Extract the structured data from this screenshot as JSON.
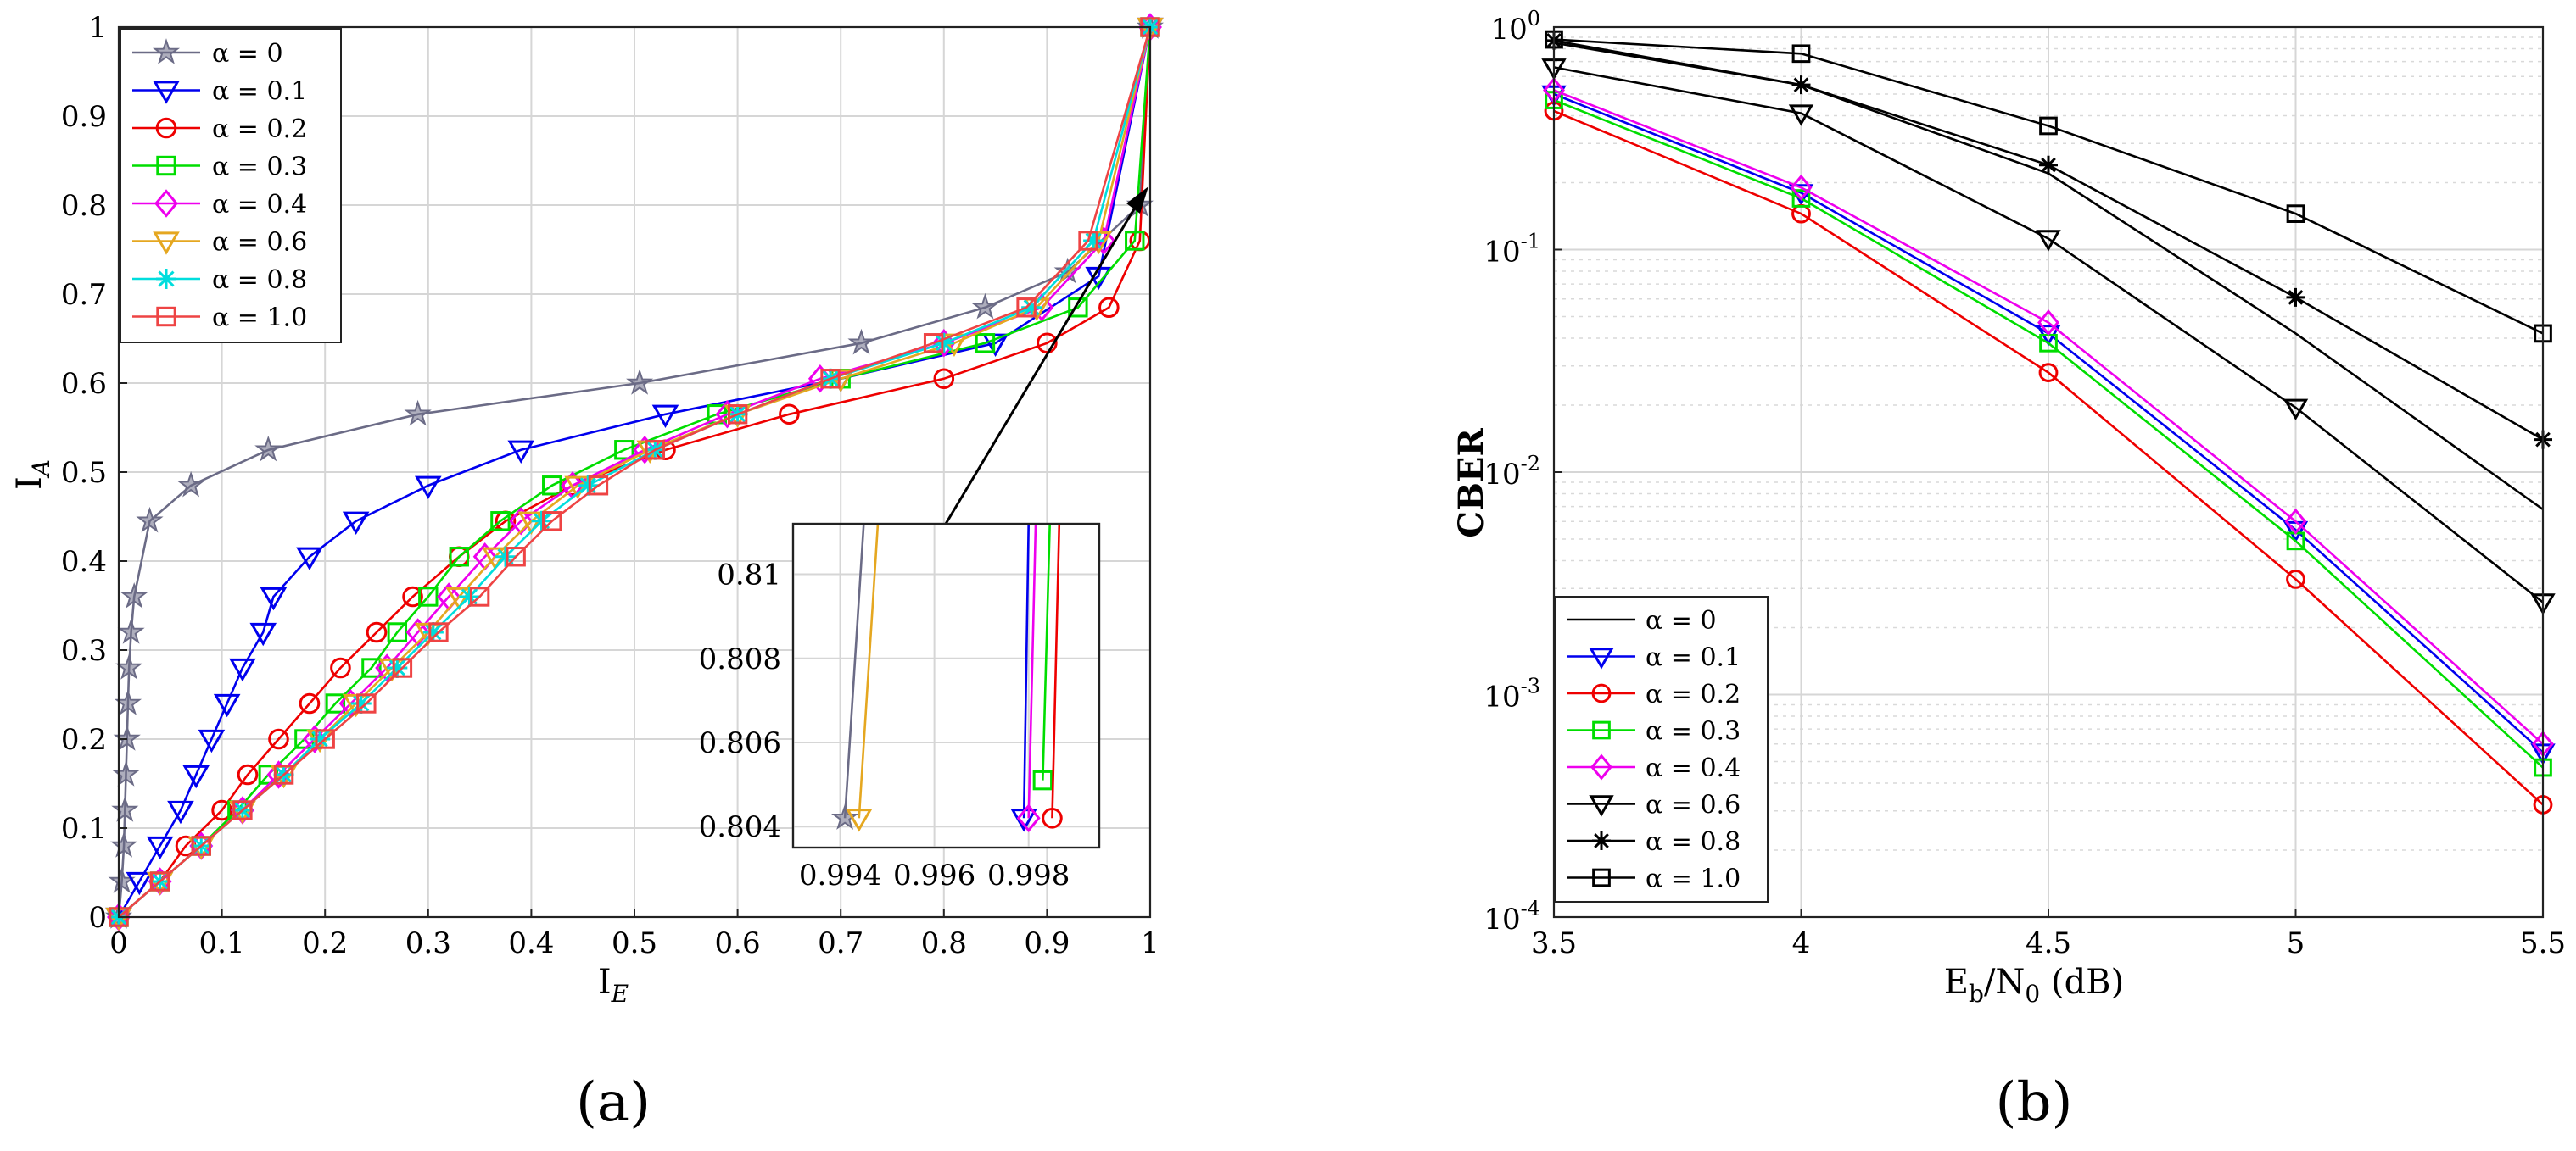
{
  "colors": {
    "a0": "#6b6b86",
    "a01": "#0000ee",
    "a02": "#ee0000",
    "a03": "#00dd00",
    "a04": "#ee00ee",
    "a06": "#e5a720",
    "a08": "#00dddd",
    "a10": "#ee4444",
    "black": "#000000"
  },
  "chart_data": [
    {
      "id": "a",
      "type": "line",
      "panel_label": "(a)",
      "xlabel": "I",
      "xlabel_sub": "E",
      "ylabel": "I",
      "ylabel_sub": "A",
      "xlim": [
        0,
        1
      ],
      "ylim": [
        0,
        1
      ],
      "xticks": [
        "0",
        "0.1",
        "0.2",
        "0.3",
        "0.4",
        "0.5",
        "0.6",
        "0.7",
        "0.8",
        "0.9",
        "1"
      ],
      "yticks": [
        "0",
        "0.1",
        "0.2",
        "0.3",
        "0.4",
        "0.5",
        "0.6",
        "0.7",
        "0.8",
        "0.9",
        "1"
      ],
      "legend_position": "top-left",
      "series": [
        {
          "name": "α = 0",
          "color_key": "a0",
          "marker": "star",
          "x": [
            0,
            0.003,
            0.005,
            0.006,
            0.007,
            0.008,
            0.009,
            0.01,
            0.012,
            0.015,
            0.03,
            0.07,
            0.145,
            0.29,
            0.505,
            0.72,
            0.84,
            0.92,
            0.99,
            1.0
          ],
          "y": [
            0,
            0.04,
            0.08,
            0.12,
            0.16,
            0.2,
            0.24,
            0.28,
            0.32,
            0.36,
            0.445,
            0.485,
            0.525,
            0.565,
            0.6,
            0.645,
            0.685,
            0.725,
            0.8,
            1.0
          ]
        },
        {
          "name": "α = 0.1",
          "color_key": "a01",
          "marker": "tri-down",
          "x": [
            0,
            0.02,
            0.04,
            0.06,
            0.075,
            0.09,
            0.105,
            0.12,
            0.14,
            0.15,
            0.185,
            0.23,
            0.3,
            0.39,
            0.53,
            0.7,
            0.85,
            0.95,
            1.0
          ],
          "y": [
            0,
            0.04,
            0.08,
            0.12,
            0.16,
            0.2,
            0.24,
            0.28,
            0.32,
            0.36,
            0.405,
            0.445,
            0.485,
            0.525,
            0.565,
            0.605,
            0.645,
            0.72,
            1.0
          ]
        },
        {
          "name": "α = 0.2",
          "color_key": "a02",
          "marker": "circle",
          "x": [
            0,
            0.04,
            0.065,
            0.1,
            0.125,
            0.155,
            0.185,
            0.215,
            0.25,
            0.285,
            0.33,
            0.375,
            0.44,
            0.53,
            0.65,
            0.8,
            0.9,
            0.96,
            0.99,
            1.0
          ],
          "y": [
            0,
            0.04,
            0.08,
            0.12,
            0.16,
            0.2,
            0.24,
            0.28,
            0.32,
            0.36,
            0.405,
            0.445,
            0.485,
            0.525,
            0.565,
            0.605,
            0.645,
            0.685,
            0.76,
            1.0
          ]
        },
        {
          "name": "α = 0.3",
          "color_key": "a03",
          "marker": "square",
          "x": [
            0,
            0.04,
            0.08,
            0.115,
            0.145,
            0.18,
            0.21,
            0.245,
            0.27,
            0.3,
            0.33,
            0.37,
            0.42,
            0.49,
            0.58,
            0.7,
            0.84,
            0.93,
            0.985,
            1.0
          ],
          "y": [
            0,
            0.04,
            0.08,
            0.12,
            0.16,
            0.2,
            0.24,
            0.28,
            0.32,
            0.36,
            0.405,
            0.445,
            0.485,
            0.525,
            0.565,
            0.605,
            0.645,
            0.685,
            0.76,
            1.0
          ]
        },
        {
          "name": "α = 0.4",
          "color_key": "a04",
          "marker": "diamond",
          "x": [
            0,
            0.04,
            0.08,
            0.12,
            0.155,
            0.19,
            0.225,
            0.26,
            0.29,
            0.32,
            0.355,
            0.39,
            0.44,
            0.51,
            0.59,
            0.68,
            0.8,
            0.895,
            0.955,
            1.0
          ],
          "y": [
            0,
            0.04,
            0.08,
            0.12,
            0.16,
            0.2,
            0.24,
            0.28,
            0.32,
            0.36,
            0.405,
            0.445,
            0.485,
            0.525,
            0.565,
            0.605,
            0.645,
            0.685,
            0.76,
            1.0
          ]
        },
        {
          "name": "α = 0.6",
          "color_key": "a06",
          "marker": "tri-down",
          "x": [
            0,
            0.04,
            0.08,
            0.12,
            0.16,
            0.195,
            0.23,
            0.265,
            0.3,
            0.33,
            0.365,
            0.4,
            0.445,
            0.515,
            0.6,
            0.7,
            0.81,
            0.89,
            0.95,
            1.0
          ],
          "y": [
            0,
            0.04,
            0.08,
            0.12,
            0.16,
            0.2,
            0.24,
            0.28,
            0.32,
            0.36,
            0.405,
            0.445,
            0.485,
            0.525,
            0.565,
            0.605,
            0.645,
            0.685,
            0.76,
            1.0
          ]
        },
        {
          "name": "α = 0.8",
          "color_key": "a08",
          "marker": "asterisk",
          "x": [
            0,
            0.04,
            0.08,
            0.12,
            0.16,
            0.195,
            0.235,
            0.27,
            0.305,
            0.34,
            0.375,
            0.41,
            0.455,
            0.52,
            0.6,
            0.69,
            0.8,
            0.885,
            0.945,
            1.0
          ],
          "y": [
            0,
            0.04,
            0.08,
            0.12,
            0.16,
            0.2,
            0.24,
            0.28,
            0.32,
            0.36,
            0.405,
            0.445,
            0.485,
            0.525,
            0.565,
            0.605,
            0.645,
            0.685,
            0.76,
            1.0
          ]
        },
        {
          "name": "α = 1.0",
          "color_key": "a10",
          "marker": "square",
          "x": [
            0,
            0.04,
            0.08,
            0.12,
            0.16,
            0.2,
            0.24,
            0.275,
            0.31,
            0.35,
            0.385,
            0.42,
            0.465,
            0.52,
            0.6,
            0.69,
            0.79,
            0.88,
            0.94,
            1.0
          ],
          "y": [
            0,
            0.04,
            0.08,
            0.12,
            0.16,
            0.2,
            0.24,
            0.28,
            0.32,
            0.36,
            0.405,
            0.445,
            0.485,
            0.525,
            0.565,
            0.605,
            0.645,
            0.685,
            0.76,
            1.0
          ]
        }
      ],
      "inset": {
        "xlim": [
          0.993,
          0.9995
        ],
        "ylim": [
          0.8035,
          0.8112
        ],
        "xticks": [
          "0.994",
          "0.996",
          "0.998"
        ],
        "yticks": [
          "0.804",
          "0.806",
          "0.808",
          "0.81"
        ],
        "series": [
          {
            "color_key": "a0",
            "marker": "star",
            "x": [
              0.9941,
              0.9945
            ],
            "y": [
              0.8042,
              0.8112
            ]
          },
          {
            "color_key": "a06",
            "marker": "tri-down",
            "x": [
              0.9944,
              0.9948
            ],
            "y": [
              0.8042,
              0.8112
            ]
          },
          {
            "color_key": "a01",
            "marker": "tri-down",
            "x": [
              0.9979,
              0.998
            ],
            "y": [
              0.8042,
              0.8112
            ]
          },
          {
            "color_key": "a04",
            "marker": "diamond",
            "x": [
              0.998,
              0.99815
            ],
            "y": [
              0.8042,
              0.8112
            ]
          },
          {
            "color_key": "a03",
            "marker": "square",
            "x": [
              0.9983,
              0.99845
            ],
            "y": [
              0.8051,
              0.8112
            ]
          },
          {
            "color_key": "a02",
            "marker": "circle",
            "x": [
              0.9985,
              0.99865
            ],
            "y": [
              0.8042,
              0.8112
            ]
          }
        ]
      }
    },
    {
      "id": "b",
      "type": "line",
      "panel_label": "(b)",
      "yscale": "log",
      "xlabel": "E",
      "xlabel_sub1": "b",
      "xlabel_mid": "/N",
      "xlabel_sub2": "0",
      "xlabel_tail": " (dB)",
      "ylabel": "CBER",
      "xlim": [
        3.5,
        5.5
      ],
      "ylim": [
        0.0001,
        1
      ],
      "xticks": [
        "3.5",
        "4",
        "4.5",
        "5",
        "5.5"
      ],
      "yticks": [
        {
          "base": "10",
          "exp": "-4"
        },
        {
          "base": "10",
          "exp": "-3"
        },
        {
          "base": "10",
          "exp": "-2"
        },
        {
          "base": "10",
          "exp": "-1"
        },
        {
          "base": "10",
          "exp": "0"
        }
      ],
      "legend_position": "bottom-left",
      "series": [
        {
          "name": "α = 0",
          "color_key": "black",
          "marker": "none",
          "x": [
            3.5,
            4.0,
            4.5,
            5.0,
            5.5
          ],
          "y": [
            0.85,
            0.55,
            0.22,
            0.042,
            0.0068
          ]
        },
        {
          "name": "α = 0.1",
          "color_key": "a01",
          "marker": "tri-down",
          "x": [
            3.5,
            4.0,
            4.5,
            5.0,
            5.5
          ],
          "y": [
            0.5,
            0.18,
            0.042,
            0.0055,
            0.00055
          ]
        },
        {
          "name": "α = 0.2",
          "color_key": "a02",
          "marker": "circle",
          "x": [
            3.5,
            4.0,
            4.5,
            5.0,
            5.5
          ],
          "y": [
            0.42,
            0.145,
            0.028,
            0.0033,
            0.00032
          ]
        },
        {
          "name": "α = 0.3",
          "color_key": "a03",
          "marker": "square",
          "x": [
            3.5,
            4.0,
            4.5,
            5.0,
            5.5
          ],
          "y": [
            0.47,
            0.17,
            0.038,
            0.0049,
            0.00047
          ]
        },
        {
          "name": "α = 0.4",
          "color_key": "a04",
          "marker": "diamond",
          "x": [
            3.5,
            4.0,
            4.5,
            5.0,
            5.5
          ],
          "y": [
            0.52,
            0.19,
            0.047,
            0.006,
            0.0006
          ]
        },
        {
          "name": "α = 0.6",
          "color_key": "black",
          "marker": "tri-down",
          "x": [
            3.5,
            4.0,
            4.5,
            5.0,
            5.5
          ],
          "y": [
            0.66,
            0.41,
            0.112,
            0.0195,
            0.0026
          ]
        },
        {
          "name": "α = 0.8",
          "color_key": "black",
          "marker": "asterisk",
          "x": [
            3.5,
            4.0,
            4.5,
            5.0,
            5.5
          ],
          "y": [
            0.87,
            0.55,
            0.24,
            0.061,
            0.014
          ]
        },
        {
          "name": "α = 1.0",
          "color_key": "black",
          "marker": "square",
          "x": [
            3.5,
            4.0,
            4.5,
            5.0,
            5.5
          ],
          "y": [
            0.88,
            0.76,
            0.36,
            0.145,
            0.042
          ]
        }
      ]
    }
  ]
}
